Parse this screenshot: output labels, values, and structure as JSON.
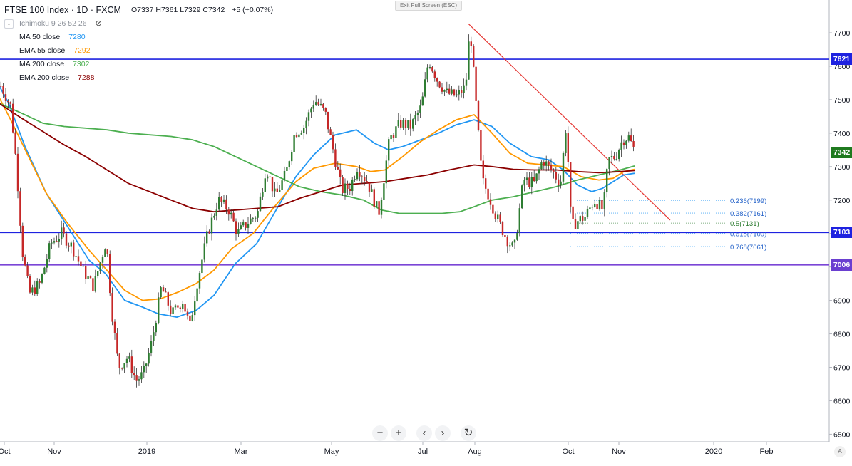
{
  "legend": {
    "symbol": "FTSE 100 Index · 1D · FXCM",
    "ohlc": "O7337 H7361 L7329 C7342",
    "change": "+5 (+0.07%)",
    "ichimoku": "Ichimoku 9 26 52 26",
    "chevron_icon": "chevron-down-icon",
    "eye_icon": "eye-slash-icon",
    "indicators": [
      {
        "label": "MA 50 close",
        "value": "7280",
        "color": "#2196f3"
      },
      {
        "label": "EMA 55 close",
        "value": "7292",
        "color": "#ff9800"
      },
      {
        "label": "MA 200 close",
        "value": "7302",
        "color": "#4caf50"
      },
      {
        "label": "EMA 200 close",
        "value": "7288",
        "color": "#8b0000"
      }
    ]
  },
  "toolbar": {
    "exit_fullscreen": "Exit Full Screen (ESC)",
    "nav_buttons": [
      {
        "name": "zoom-out-button",
        "label": "−"
      },
      {
        "name": "zoom-in-button",
        "label": "+"
      },
      {
        "name": "scroll-left-button",
        "label": "‹"
      },
      {
        "name": "scroll-right-button",
        "label": "›"
      },
      {
        "name": "reset-chart-button",
        "label": "↻"
      }
    ],
    "auto_scale": "A"
  },
  "chart_data": {
    "type": "candlestick",
    "title": "FTSE 100 Index · 1D · FXCM",
    "ylim": [
      6485,
      7790
    ],
    "y_ticks": [
      6500,
      6600,
      6700,
      6800,
      6900,
      7000,
      7100,
      7200,
      7300,
      7400,
      7500,
      7600,
      7700
    ],
    "x_labels": [
      "Oct",
      "Nov",
      "2019",
      "Mar",
      "May",
      "Jul",
      "Aug",
      "Oct",
      "Nov",
      "2020",
      "Feb"
    ],
    "price_badges": [
      {
        "value": "7621",
        "color": "#1e22e0"
      },
      {
        "value": "7342",
        "color": "#1f7a1f"
      },
      {
        "value": "7103",
        "color": "#1e22e0"
      },
      {
        "value": "7006",
        "color": "#6a3fd0"
      }
    ],
    "horizontal_levels": [
      {
        "value": 7621,
        "color": "#1e22e0"
      },
      {
        "value": 7103,
        "color": "#1e22e0"
      },
      {
        "value": 7006,
        "color": "#7b46d6"
      }
    ],
    "trendline": {
      "from": {
        "date": "2019-07-26",
        "price": 7727
      },
      "to": {
        "date": "2019-12-04",
        "price": 7140
      },
      "color": "#e53935"
    },
    "fibonacci": [
      {
        "label": "0.236(7199)",
        "price": 7199
      },
      {
        "label": "0.382(7161)",
        "price": 7161
      },
      {
        "label": "0.5(7131)",
        "price": 7131
      },
      {
        "label": "0.618(7100)",
        "price": 7100
      },
      {
        "label": "0.768(7061)",
        "price": 7061
      }
    ],
    "ma_series": [
      {
        "name": "MA 50 close",
        "color": "#2196f3",
        "points": [
          [
            -2,
            7545
          ],
          [
            12,
            7490
          ],
          [
            35,
            7360
          ],
          [
            65,
            7220
          ],
          [
            95,
            7120
          ],
          [
            125,
            7020
          ],
          [
            148,
            6980
          ],
          [
            175,
            6900
          ],
          [
            200,
            6880
          ],
          [
            222,
            6860
          ],
          [
            248,
            6850
          ],
          [
            275,
            6870
          ],
          [
            300,
            6915
          ],
          [
            330,
            7010
          ],
          [
            360,
            7070
          ],
          [
            390,
            7180
          ],
          [
            415,
            7270
          ],
          [
            440,
            7335
          ],
          [
            470,
            7395
          ],
          [
            500,
            7410
          ],
          [
            525,
            7370
          ],
          [
            545,
            7350
          ],
          [
            565,
            7360
          ],
          [
            590,
            7380
          ],
          [
            615,
            7400
          ],
          [
            640,
            7425
          ],
          [
            665,
            7440
          ],
          [
            690,
            7420
          ],
          [
            715,
            7370
          ],
          [
            745,
            7330
          ],
          [
            770,
            7320
          ],
          [
            790,
            7290
          ],
          [
            810,
            7245
          ],
          [
            830,
            7225
          ],
          [
            845,
            7235
          ],
          [
            860,
            7255
          ],
          [
            875,
            7275
          ],
          [
            890,
            7280
          ]
        ]
      },
      {
        "name": "EMA 55 close",
        "color": "#ff9800",
        "points": [
          [
            -2,
            7510
          ],
          [
            15,
            7440
          ],
          [
            40,
            7330
          ],
          [
            65,
            7220
          ],
          [
            95,
            7130
          ],
          [
            125,
            7050
          ],
          [
            150,
            6990
          ],
          [
            175,
            6930
          ],
          [
            200,
            6900
          ],
          [
            225,
            6905
          ],
          [
            250,
            6925
          ],
          [
            275,
            6950
          ],
          [
            300,
            6990
          ],
          [
            325,
            7055
          ],
          [
            355,
            7100
          ],
          [
            385,
            7180
          ],
          [
            415,
            7255
          ],
          [
            440,
            7295
          ],
          [
            470,
            7310
          ],
          [
            500,
            7300
          ],
          [
            520,
            7285
          ],
          [
            540,
            7290
          ],
          [
            565,
            7330
          ],
          [
            590,
            7375
          ],
          [
            615,
            7410
          ],
          [
            640,
            7440
          ],
          [
            665,
            7455
          ],
          [
            690,
            7400
          ],
          [
            715,
            7340
          ],
          [
            740,
            7310
          ],
          [
            765,
            7305
          ],
          [
            790,
            7300
          ],
          [
            815,
            7270
          ],
          [
            840,
            7260
          ],
          [
            860,
            7265
          ],
          [
            875,
            7285
          ],
          [
            890,
            7292
          ]
        ]
      },
      {
        "name": "MA 200 close",
        "color": "#4caf50",
        "points": [
          [
            -2,
            7490
          ],
          [
            30,
            7460
          ],
          [
            60,
            7430
          ],
          [
            90,
            7420
          ],
          [
            120,
            7415
          ],
          [
            150,
            7410
          ],
          [
            180,
            7400
          ],
          [
            210,
            7395
          ],
          [
            240,
            7390
          ],
          [
            270,
            7380
          ],
          [
            300,
            7360
          ],
          [
            330,
            7330
          ],
          [
            360,
            7300
          ],
          [
            390,
            7270
          ],
          [
            420,
            7240
          ],
          [
            450,
            7225
          ],
          [
            480,
            7215
          ],
          [
            510,
            7200
          ],
          [
            535,
            7170
          ],
          [
            560,
            7160
          ],
          [
            590,
            7160
          ],
          [
            620,
            7160
          ],
          [
            645,
            7165
          ],
          [
            665,
            7180
          ],
          [
            690,
            7200
          ],
          [
            720,
            7210
          ],
          [
            750,
            7225
          ],
          [
            780,
            7240
          ],
          [
            810,
            7260
          ],
          [
            840,
            7275
          ],
          [
            870,
            7290
          ],
          [
            890,
            7302
          ]
        ]
      },
      {
        "name": "EMA 200 close",
        "color": "#8b0000",
        "points": [
          [
            -2,
            7490
          ],
          [
            30,
            7445
          ],
          [
            60,
            7405
          ],
          [
            90,
            7365
          ],
          [
            120,
            7330
          ],
          [
            150,
            7290
          ],
          [
            180,
            7250
          ],
          [
            210,
            7225
          ],
          [
            240,
            7200
          ],
          [
            270,
            7175
          ],
          [
            300,
            7165
          ],
          [
            330,
            7170
          ],
          [
            360,
            7175
          ],
          [
            390,
            7180
          ],
          [
            420,
            7205
          ],
          [
            450,
            7225
          ],
          [
            480,
            7245
          ],
          [
            510,
            7250
          ],
          [
            540,
            7255
          ],
          [
            570,
            7265
          ],
          [
            600,
            7275
          ],
          [
            630,
            7290
          ],
          [
            665,
            7305
          ],
          [
            690,
            7300
          ],
          [
            720,
            7292
          ],
          [
            750,
            7290
          ],
          [
            780,
            7290
          ],
          [
            810,
            7285
          ],
          [
            840,
            7282
          ],
          [
            870,
            7285
          ],
          [
            890,
            7288
          ]
        ]
      }
    ],
    "price_path": [
      [
        -2,
        7550
      ],
      [
        14,
        7480
      ],
      [
        22,
        7300
      ],
      [
        30,
        7050
      ],
      [
        40,
        6920
      ],
      [
        55,
        6950
      ],
      [
        70,
        7070
      ],
      [
        85,
        7100
      ],
      [
        100,
        7060
      ],
      [
        115,
        6990
      ],
      [
        130,
        6940
      ],
      [
        148,
        7080
      ],
      [
        155,
        6880
      ],
      [
        165,
        6700
      ],
      [
        178,
        6730
      ],
      [
        190,
        6660
      ],
      [
        200,
        6680
      ],
      [
        212,
        6780
      ],
      [
        225,
        6940
      ],
      [
        240,
        6860
      ],
      [
        255,
        6900
      ],
      [
        265,
        6820
      ],
      [
        275,
        6950
      ],
      [
        290,
        7100
      ],
      [
        305,
        7200
      ],
      [
        320,
        7170
      ],
      [
        332,
        7100
      ],
      [
        345,
        7130
      ],
      [
        360,
        7160
      ],
      [
        372,
        7300
      ],
      [
        385,
        7210
      ],
      [
        400,
        7280
      ],
      [
        412,
        7400
      ],
      [
        425,
        7420
      ],
      [
        440,
        7500
      ],
      [
        455,
        7460
      ],
      [
        468,
        7330
      ],
      [
        478,
        7230
      ],
      [
        490,
        7240
      ],
      [
        500,
        7300
      ],
      [
        515,
        7250
      ],
      [
        530,
        7160
      ],
      [
        545,
        7380
      ],
      [
        560,
        7430
      ],
      [
        575,
        7420
      ],
      [
        590,
        7480
      ],
      [
        600,
        7620
      ],
      [
        612,
        7560
      ],
      [
        625,
        7520
      ],
      [
        640,
        7510
      ],
      [
        652,
        7540
      ],
      [
        658,
        7720
      ],
      [
        668,
        7440
      ],
      [
        675,
        7260
      ],
      [
        685,
        7210
      ],
      [
        695,
        7150
      ],
      [
        708,
        7090
      ],
      [
        720,
        7050
      ],
      [
        733,
        7260
      ],
      [
        748,
        7250
      ],
      [
        760,
        7320
      ],
      [
        772,
        7290
      ],
      [
        785,
        7250
      ],
      [
        793,
        7430
      ],
      [
        800,
        7120
      ],
      [
        810,
        7140
      ],
      [
        820,
        7150
      ],
      [
        832,
        7200
      ],
      [
        845,
        7170
      ],
      [
        852,
        7320
      ],
      [
        862,
        7330
      ],
      [
        872,
        7380
      ],
      [
        880,
        7390
      ],
      [
        890,
        7342
      ]
    ]
  }
}
